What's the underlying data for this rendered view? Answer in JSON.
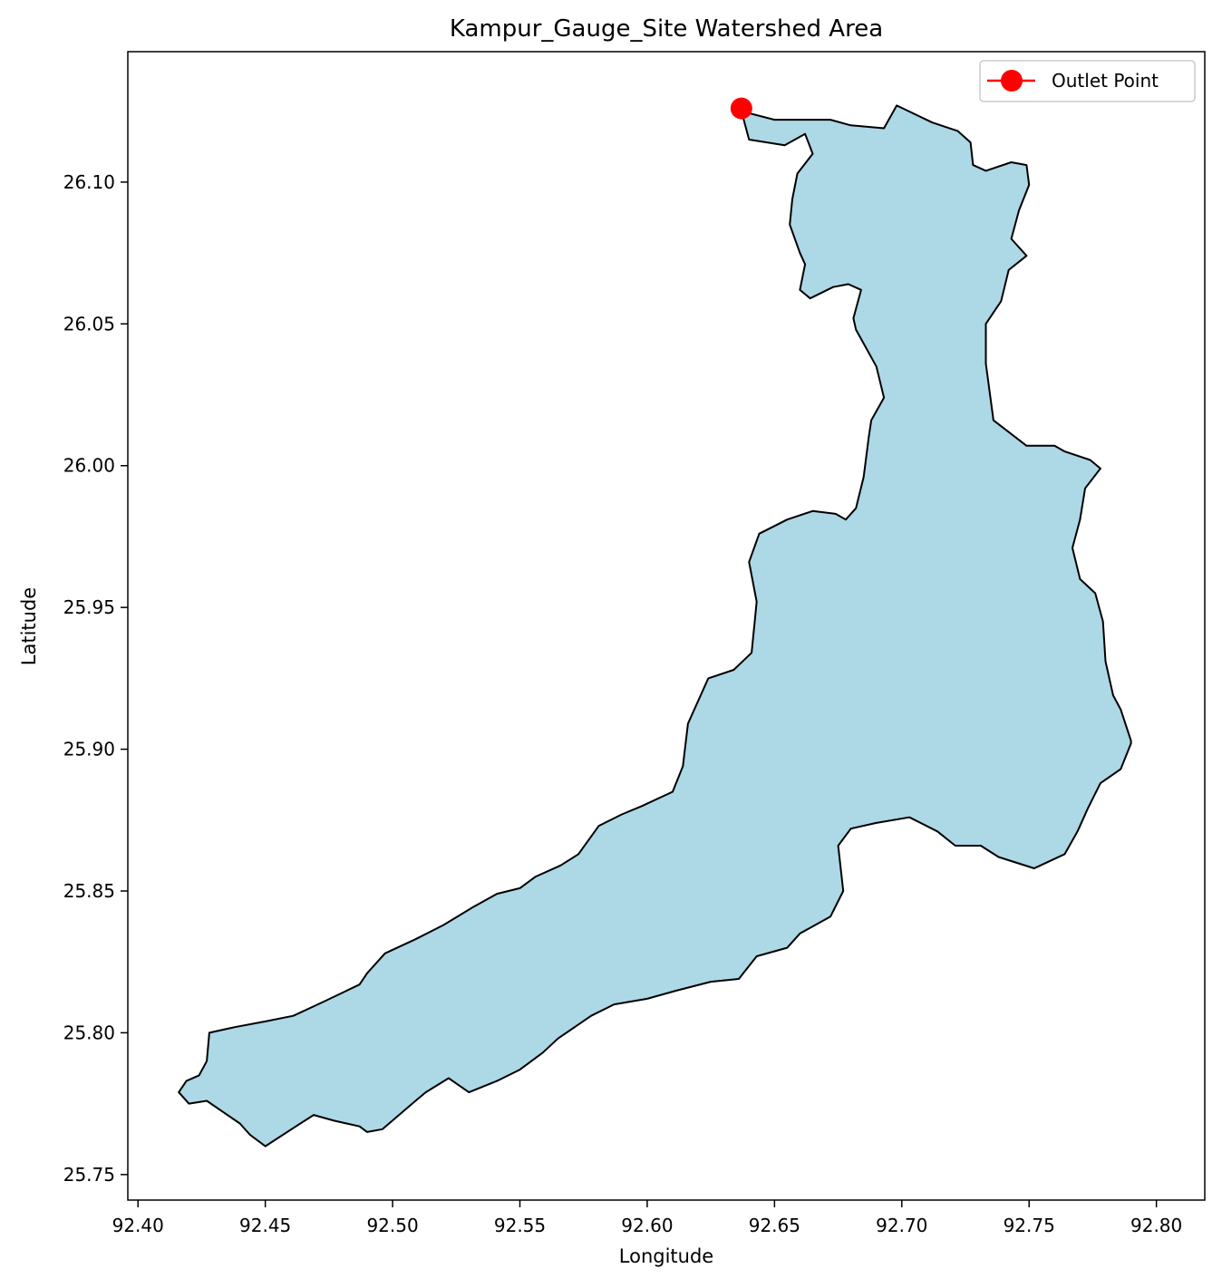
{
  "title": "Kampur_Gauge_Site Watershed Area",
  "xlabel": "Longitude",
  "ylabel": "Latitude",
  "legend": {
    "label": "Outlet Point"
  },
  "colors": {
    "watershed_fill": "#add8e6",
    "watershed_edge": "#000000",
    "outlet": "#ff0000"
  },
  "x_ticks": [
    "92.40",
    "92.45",
    "92.50",
    "92.55",
    "92.60",
    "92.65",
    "92.70",
    "92.75",
    "92.80"
  ],
  "y_ticks": [
    "25.75",
    "25.80",
    "25.85",
    "25.90",
    "25.95",
    "26.00",
    "26.05",
    "26.10"
  ],
  "chart_data": {
    "type": "map",
    "title": "Kampur_Gauge_Site Watershed Area",
    "xlabel": "Longitude",
    "ylabel": "Latitude",
    "xlim": [
      92.396,
      92.819
    ],
    "ylim": [
      25.741,
      26.146
    ],
    "legend_position": "top-right",
    "grid": false,
    "outlet": {
      "name": "Outlet Point",
      "lon": 92.637,
      "lat": 26.126
    },
    "watershed_boundary": [
      [
        92.637,
        26.125
      ],
      [
        92.65,
        26.122
      ],
      [
        92.672,
        26.122
      ],
      [
        92.68,
        26.12
      ],
      [
        92.693,
        26.119
      ],
      [
        92.698,
        26.127
      ],
      [
        92.712,
        26.121
      ],
      [
        92.722,
        26.118
      ],
      [
        92.727,
        26.114
      ],
      [
        92.728,
        26.106
      ],
      [
        92.733,
        26.104
      ],
      [
        92.743,
        26.107
      ],
      [
        92.749,
        26.106
      ],
      [
        92.75,
        26.099
      ],
      [
        92.746,
        26.09
      ],
      [
        92.743,
        26.08
      ],
      [
        92.749,
        26.074
      ],
      [
        92.742,
        26.069
      ],
      [
        92.739,
        26.058
      ],
      [
        92.733,
        26.05
      ],
      [
        92.733,
        26.036
      ],
      [
        92.736,
        26.016
      ],
      [
        92.749,
        26.007
      ],
      [
        92.76,
        26.007
      ],
      [
        92.764,
        26.005
      ],
      [
        92.774,
        26.002
      ],
      [
        92.778,
        25.999
      ],
      [
        92.772,
        25.992
      ],
      [
        92.77,
        25.981
      ],
      [
        92.767,
        25.971
      ],
      [
        92.77,
        25.96
      ],
      [
        92.776,
        25.955
      ],
      [
        92.779,
        25.945
      ],
      [
        92.78,
        25.931
      ],
      [
        92.783,
        25.919
      ],
      [
        92.786,
        25.914
      ],
      [
        92.79,
        25.903
      ],
      [
        92.79,
        25.902
      ],
      [
        92.786,
        25.893
      ],
      [
        92.778,
        25.888
      ],
      [
        92.773,
        25.879
      ],
      [
        92.769,
        25.871
      ],
      [
        92.764,
        25.863
      ],
      [
        92.752,
        25.858
      ],
      [
        92.738,
        25.862
      ],
      [
        92.731,
        25.866
      ],
      [
        92.721,
        25.866
      ],
      [
        92.714,
        25.871
      ],
      [
        92.703,
        25.876
      ],
      [
        92.69,
        25.874
      ],
      [
        92.68,
        25.872
      ],
      [
        92.675,
        25.866
      ],
      [
        92.677,
        25.85
      ],
      [
        92.672,
        25.841
      ],
      [
        92.66,
        25.835
      ],
      [
        92.655,
        25.83
      ],
      [
        92.643,
        25.827
      ],
      [
        92.636,
        25.819
      ],
      [
        92.625,
        25.818
      ],
      [
        92.612,
        25.815
      ],
      [
        92.6,
        25.812
      ],
      [
        92.587,
        25.81
      ],
      [
        92.578,
        25.806
      ],
      [
        92.565,
        25.798
      ],
      [
        92.559,
        25.793
      ],
      [
        92.55,
        25.787
      ],
      [
        92.541,
        25.783
      ],
      [
        92.53,
        25.779
      ],
      [
        92.522,
        25.784
      ],
      [
        92.513,
        25.779
      ],
      [
        92.509,
        25.776
      ],
      [
        92.496,
        25.766
      ],
      [
        92.49,
        25.765
      ],
      [
        92.487,
        25.767
      ],
      [
        92.477,
        25.769
      ],
      [
        92.469,
        25.771
      ],
      [
        92.462,
        25.767
      ],
      [
        92.45,
        25.76
      ],
      [
        92.444,
        25.764
      ],
      [
        92.44,
        25.768
      ],
      [
        92.427,
        25.776
      ],
      [
        92.42,
        25.775
      ],
      [
        92.416,
        25.779
      ],
      [
        92.419,
        25.783
      ],
      [
        92.424,
        25.785
      ],
      [
        92.427,
        25.79
      ],
      [
        92.428,
        25.8
      ],
      [
        92.438,
        25.802
      ],
      [
        92.45,
        25.804
      ],
      [
        92.461,
        25.806
      ],
      [
        92.473,
        25.811
      ],
      [
        92.487,
        25.817
      ],
      [
        92.49,
        25.821
      ],
      [
        92.497,
        25.828
      ],
      [
        92.509,
        25.833
      ],
      [
        92.52,
        25.838
      ],
      [
        92.531,
        25.844
      ],
      [
        92.541,
        25.849
      ],
      [
        92.55,
        25.851
      ],
      [
        92.556,
        25.855
      ],
      [
        92.566,
        25.859
      ],
      [
        92.573,
        25.863
      ],
      [
        92.581,
        25.873
      ],
      [
        92.59,
        25.877
      ],
      [
        92.598,
        25.88
      ],
      [
        92.61,
        25.885
      ],
      [
        92.614,
        25.894
      ],
      [
        92.616,
        25.909
      ],
      [
        92.624,
        25.925
      ],
      [
        92.634,
        25.928
      ],
      [
        92.641,
        25.934
      ],
      [
        92.643,
        25.952
      ],
      [
        92.64,
        25.966
      ],
      [
        92.644,
        25.976
      ],
      [
        92.655,
        25.981
      ],
      [
        92.665,
        25.984
      ],
      [
        92.674,
        25.983
      ],
      [
        92.678,
        25.981
      ],
      [
        92.682,
        25.985
      ],
      [
        92.685,
        25.996
      ],
      [
        92.687,
        26.01
      ],
      [
        92.688,
        26.016
      ],
      [
        92.693,
        26.024
      ],
      [
        92.69,
        26.035
      ],
      [
        92.682,
        26.048
      ],
      [
        92.681,
        26.052
      ],
      [
        92.684,
        26.062
      ],
      [
        92.679,
        26.064
      ],
      [
        92.673,
        26.063
      ],
      [
        92.664,
        26.059
      ],
      [
        92.66,
        26.062
      ],
      [
        92.662,
        26.071
      ],
      [
        92.66,
        26.075
      ],
      [
        92.656,
        26.085
      ],
      [
        92.657,
        26.094
      ],
      [
        92.659,
        26.103
      ],
      [
        92.665,
        26.11
      ],
      [
        92.662,
        26.117
      ],
      [
        92.654,
        26.113
      ],
      [
        92.64,
        26.115
      ],
      [
        92.637,
        26.125
      ]
    ]
  }
}
